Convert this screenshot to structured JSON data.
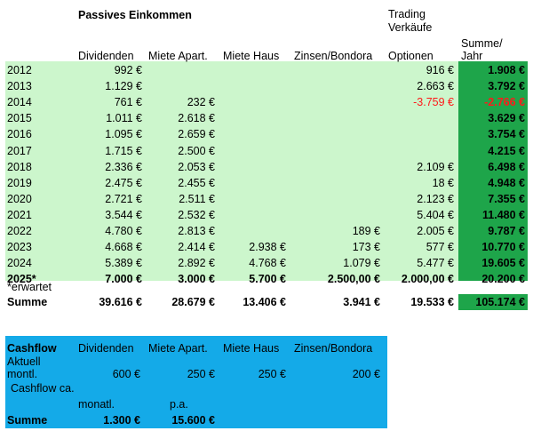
{
  "header": {
    "title": "Passives Einkommen",
    "trading_line1": "Trading",
    "trading_line2": "Verkäufe",
    "sum_line1": "Summe/",
    "sum_line2": "Jahr",
    "columns": [
      "Dividenden",
      "Miete Apart.",
      "Miete Haus",
      "Zinsen/Bondora",
      "Optionen"
    ]
  },
  "rows": [
    {
      "year": "2012",
      "div": "992 €",
      "apart": "",
      "haus": "",
      "zins": "",
      "opt": "916 €",
      "sum": "1.908 €"
    },
    {
      "year": "2013",
      "div": "1.129 €",
      "apart": "",
      "haus": "",
      "zins": "",
      "opt": "2.663 €",
      "sum": "3.792 €"
    },
    {
      "year": "2014",
      "div": "761 €",
      "apart": "232 €",
      "haus": "",
      "zins": "",
      "opt": "-3.759 €",
      "sum": "-2.766 €"
    },
    {
      "year": "2015",
      "div": "1.011 €",
      "apart": "2.618 €",
      "haus": "",
      "zins": "",
      "opt": "",
      "sum": "3.629 €"
    },
    {
      "year": "2016",
      "div": "1.095 €",
      "apart": "2.659 €",
      "haus": "",
      "zins": "",
      "opt": "",
      "sum": "3.754 €"
    },
    {
      "year": "2017",
      "div": "1.715 €",
      "apart": "2.500 €",
      "haus": "",
      "zins": "",
      "opt": "",
      "sum": "4.215 €"
    },
    {
      "year": "2018",
      "div": "2.336 €",
      "apart": "2.053 €",
      "haus": "",
      "zins": "",
      "opt": "2.109 €",
      "sum": "6.498 €"
    },
    {
      "year": "2019",
      "div": "2.475 €",
      "apart": "2.455 €",
      "haus": "",
      "zins": "",
      "opt": "18 €",
      "sum": "4.948 €"
    },
    {
      "year": "2020",
      "div": "2.721 €",
      "apart": "2.511 €",
      "haus": "",
      "zins": "",
      "opt": "2.123 €",
      "sum": "7.355 €"
    },
    {
      "year": "2021",
      "div": "3.544 €",
      "apart": "2.532 €",
      "haus": "",
      "zins": "",
      "opt": "5.404 €",
      "sum": "11.480 €"
    },
    {
      "year": "2022",
      "div": "4.780 €",
      "apart": "2.813 €",
      "haus": "",
      "zins": "189 €",
      "opt": "2.005 €",
      "sum": "9.787 €"
    },
    {
      "year": "2023",
      "div": "4.668 €",
      "apart": "2.414 €",
      "haus": "2.938 €",
      "zins": "173 €",
      "opt": "577 €",
      "sum": "10.770 €"
    },
    {
      "year": "2024",
      "div": "5.389 €",
      "apart": "2.892 €",
      "haus": "4.768 €",
      "zins": "1.079 €",
      "opt": "5.477 €",
      "sum": "19.605 €"
    },
    {
      "year": "2025*",
      "div": "7.000 €",
      "apart": "3.000 €",
      "haus": "5.700 €",
      "zins": "2.500,00 €",
      "opt": "2.000,00 €",
      "sum": "20.200 €"
    }
  ],
  "footnote": "*erwartet",
  "total": {
    "label": "Summe",
    "div": "39.616 €",
    "apart": "28.679 €",
    "haus": "13.406 €",
    "zins": "3.941 €",
    "opt": "19.533 €",
    "sum": "105.174 €"
  },
  "cashflow": {
    "title": "Cashflow",
    "columns": [
      "Dividenden",
      "Miete Apart.",
      "Miete Haus",
      "Zinsen/Bondora"
    ],
    "aktuell": "Aktuell",
    "monthly_label": "montl.",
    "monthly": {
      "div": "600 €",
      "apart": "250 €",
      "haus": "250 €",
      "zins": "200 €"
    },
    "ca_label": "Cashflow ca.",
    "monat_label": "monatl.",
    "pa_label": "p.a.",
    "sum_label": "Summe",
    "sum_monthly": "1.300 €",
    "sum_pa": "15.600 €"
  },
  "colors": {
    "green_band": "#ccf6cc",
    "sum_green": "#1ea54a",
    "cashflow_blue": "#14aae8",
    "negative_red": "#ff1a1a"
  }
}
